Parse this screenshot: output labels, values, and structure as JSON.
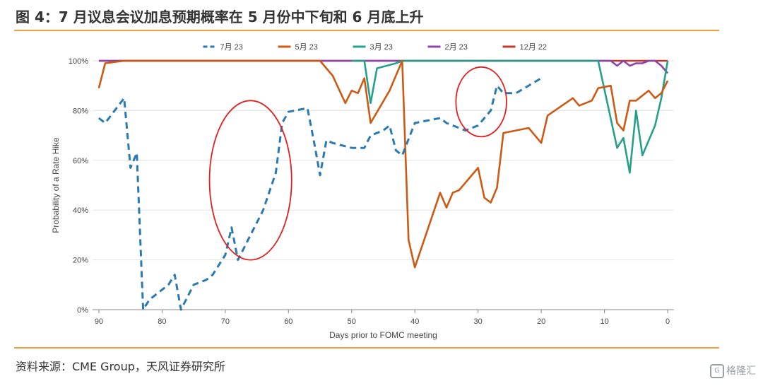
{
  "figure": {
    "title": "图 4：7 月议息会议加息预期概率在 5 月份中下旬和 6 月底上升",
    "source": "资料来源：CME Group，天风证券研究所",
    "watermark": "格隆汇"
  },
  "colors": {
    "rule": "#f0a040"
  },
  "chart_data": {
    "type": "line",
    "xlabel": "Days prior to FOMC meeting",
    "ylabel": "Probability of a Rate Hike",
    "xlim": [
      91,
      -1
    ],
    "ylim": [
      0,
      100
    ],
    "x_ticks": [
      90,
      80,
      70,
      60,
      50,
      40,
      30,
      20,
      10,
      0
    ],
    "y_ticks": [
      0,
      20,
      40,
      60,
      80,
      100
    ],
    "y_tick_labels": [
      "0%",
      "20%",
      "40%",
      "60%",
      "80%",
      "100%"
    ],
    "grid": true,
    "legend": "top-center",
    "series": [
      {
        "name": "7月 23",
        "color": "#2a7ab0",
        "style": "dashed",
        "points": [
          [
            90,
            77
          ],
          [
            89,
            75
          ],
          [
            86,
            85
          ],
          [
            85,
            57
          ],
          [
            84,
            63
          ],
          [
            83,
            0
          ],
          [
            82,
            4
          ],
          [
            79,
            10
          ],
          [
            78,
            14
          ],
          [
            77,
            0
          ],
          [
            75,
            10
          ],
          [
            73,
            12
          ],
          [
            72,
            14
          ],
          [
            70,
            22
          ],
          [
            69,
            33
          ],
          [
            68,
            20
          ],
          [
            66,
            30
          ],
          [
            64,
            40
          ],
          [
            62,
            55
          ],
          [
            61,
            75
          ],
          [
            60,
            79.5
          ],
          [
            57,
            81
          ],
          [
            56,
            68
          ],
          [
            55,
            54
          ],
          [
            54,
            68
          ],
          [
            53,
            67
          ],
          [
            50,
            65
          ],
          [
            48,
            65
          ],
          [
            47,
            70
          ],
          [
            45,
            72
          ],
          [
            44,
            74
          ],
          [
            43,
            64
          ],
          [
            42,
            62
          ],
          [
            40,
            75
          ],
          [
            38,
            76
          ],
          [
            36,
            77
          ],
          [
            35,
            75
          ],
          [
            34,
            74
          ],
          [
            32,
            72
          ],
          [
            30,
            74
          ],
          [
            29,
            77
          ],
          [
            28,
            80
          ],
          [
            27,
            90
          ],
          [
            26,
            87
          ],
          [
            24,
            87
          ],
          [
            20,
            93
          ]
        ]
      },
      {
        "name": "5月 23",
        "color": "#cc5a12",
        "style": "solid",
        "points": [
          [
            90,
            89
          ],
          [
            89,
            99
          ],
          [
            86,
            100
          ],
          [
            55,
            100
          ],
          [
            53,
            94
          ],
          [
            51,
            83
          ],
          [
            50,
            88
          ],
          [
            49,
            87
          ],
          [
            48,
            93
          ],
          [
            47,
            75
          ],
          [
            44,
            88
          ],
          [
            42,
            100
          ],
          [
            41,
            28
          ],
          [
            40,
            17
          ],
          [
            36,
            47
          ],
          [
            35,
            41
          ],
          [
            34,
            47
          ],
          [
            33,
            48
          ],
          [
            30,
            57
          ],
          [
            29,
            45
          ],
          [
            28,
            43
          ],
          [
            27,
            49
          ],
          [
            26,
            71
          ],
          [
            22,
            73
          ],
          [
            21,
            70
          ],
          [
            20,
            67
          ],
          [
            19,
            78
          ],
          [
            15,
            85
          ],
          [
            14,
            82
          ],
          [
            12,
            84
          ],
          [
            11,
            89
          ],
          [
            9,
            90
          ],
          [
            8,
            75
          ],
          [
            7,
            72
          ],
          [
            6,
            84
          ],
          [
            5,
            84
          ],
          [
            3,
            88
          ],
          [
            2,
            85
          ],
          [
            1,
            87
          ],
          [
            0,
            92
          ]
        ]
      },
      {
        "name": "3月 23",
        "color": "#26a08a",
        "style": "solid",
        "points": [
          [
            50,
            100
          ],
          [
            48,
            100
          ],
          [
            47,
            83
          ],
          [
            46,
            97
          ],
          [
            43,
            99
          ],
          [
            42,
            100
          ],
          [
            11,
            100
          ],
          [
            8,
            65
          ],
          [
            7,
            69
          ],
          [
            6,
            55
          ],
          [
            5,
            80
          ],
          [
            4,
            62
          ],
          [
            2,
            74
          ],
          [
            1,
            85
          ],
          [
            0,
            100
          ]
        ]
      },
      {
        "name": "2月 23",
        "color": "#8e44ad",
        "style": "solid",
        "points": [
          [
            90,
            100
          ],
          [
            11,
            100
          ],
          [
            9,
            100
          ],
          [
            8,
            98
          ],
          [
            7,
            100
          ],
          [
            6,
            98
          ],
          [
            5,
            99
          ],
          [
            4,
            99
          ],
          [
            3,
            100
          ],
          [
            2,
            100
          ],
          [
            1,
            98
          ],
          [
            0,
            95
          ]
        ]
      },
      {
        "name": "12月 22",
        "color": "#c0392b",
        "style": "solid",
        "points": [
          [
            90,
            100
          ],
          [
            0,
            100
          ]
        ]
      }
    ],
    "annotations": [
      {
        "type": "ellipse",
        "color": "#e02020",
        "cx": 66,
        "cy": 52,
        "rx": 6.5,
        "ry": 32
      },
      {
        "type": "ellipse",
        "color": "#e02020",
        "cx": 29.5,
        "cy": 83.5,
        "rx": 4,
        "ry": 14
      }
    ]
  }
}
